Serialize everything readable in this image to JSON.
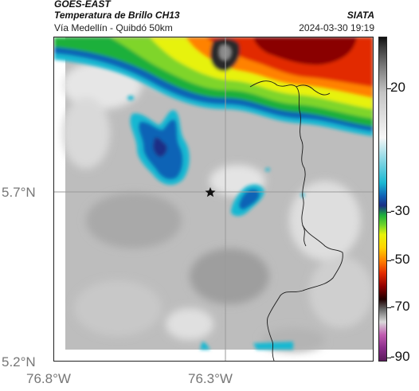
{
  "header": {
    "satellite": "GOES-EAST",
    "product": "Temperatura de Brillo CH13",
    "route": "Vía Medellín - Quibdó 50km",
    "organization": "SIATA",
    "datetime": "2024-03-30 19:19"
  },
  "axes": {
    "lat_top": "5.7°N",
    "lat_bottom": "5.2°N",
    "lon_left": "76.8°W",
    "lon_right": "76.3°W"
  },
  "colorbar": {
    "ticks": [
      "20",
      "-30",
      "-50",
      "-70",
      "-90"
    ]
  },
  "map": {
    "marker_icon": "star-icon",
    "colors": {
      "warm_gray": "#bdbdbd",
      "cold_cyan": "#19b8d2",
      "cold_blue": "#0f63b6",
      "green": "#1eb03b",
      "yellow": "#e7f20a",
      "orange": "#ff8200",
      "red": "#e22a00",
      "darkred": "#6a0000"
    }
  }
}
